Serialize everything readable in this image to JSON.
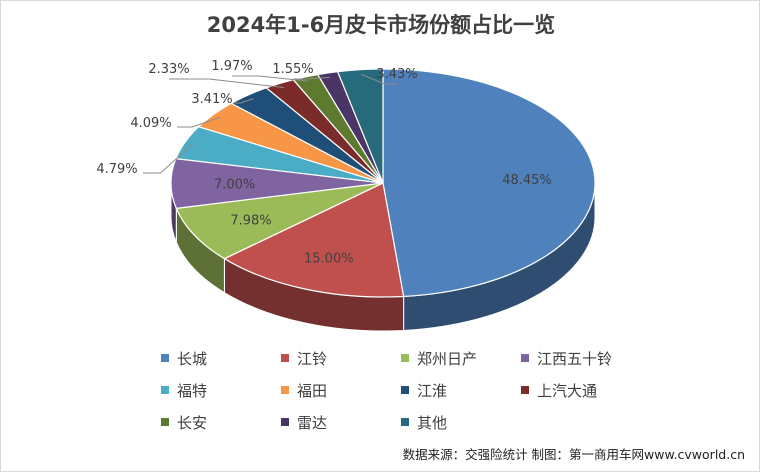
{
  "chart_data": {
    "type": "pie",
    "title": "2024年1-6月皮卡市场份额占比一览",
    "slices": [
      {
        "name": "长城",
        "value": 48.45,
        "label": "48.45%",
        "color": "#4F81BD",
        "label_side": "inside"
      },
      {
        "name": "江铃",
        "value": 15.0,
        "label": "15.00%",
        "color": "#C0504D",
        "label_side": "inside"
      },
      {
        "name": "郑州日产",
        "value": 7.98,
        "label": "7.98%",
        "color": "#9BBB59",
        "label_side": "inside"
      },
      {
        "name": "江西五十铃",
        "value": 7.0,
        "label": "7.00%",
        "color": "#8064A2",
        "label_side": "inside"
      },
      {
        "name": "福特",
        "value": 4.79,
        "label": "4.79%",
        "color": "#4BACC6",
        "label_side": "outside"
      },
      {
        "name": "福田",
        "value": 4.09,
        "label": "4.09%",
        "color": "#F79646",
        "label_side": "outside"
      },
      {
        "name": "江淮",
        "value": 3.41,
        "label": "3.41%",
        "color": "#1F4E79",
        "label_side": "outside"
      },
      {
        "name": "上汽大通",
        "value": 2.33,
        "label": "2.33%",
        "color": "#7B2C2A",
        "label_side": "outside"
      },
      {
        "name": "长安",
        "value": 1.97,
        "label": "1.97%",
        "color": "#5E7A2E",
        "label_side": "outside"
      },
      {
        "name": "雷达",
        "value": 1.55,
        "label": "1.55%",
        "color": "#4A3566",
        "label_side": "outside"
      },
      {
        "name": "其他",
        "value": 3.43,
        "label": "3.43%",
        "color": "#276A7C",
        "label_side": "outside"
      }
    ],
    "legend_position": "bottom"
  },
  "source_note": "数据来源：交强险统计 制图：第一商用车网www.cvworld.cn"
}
